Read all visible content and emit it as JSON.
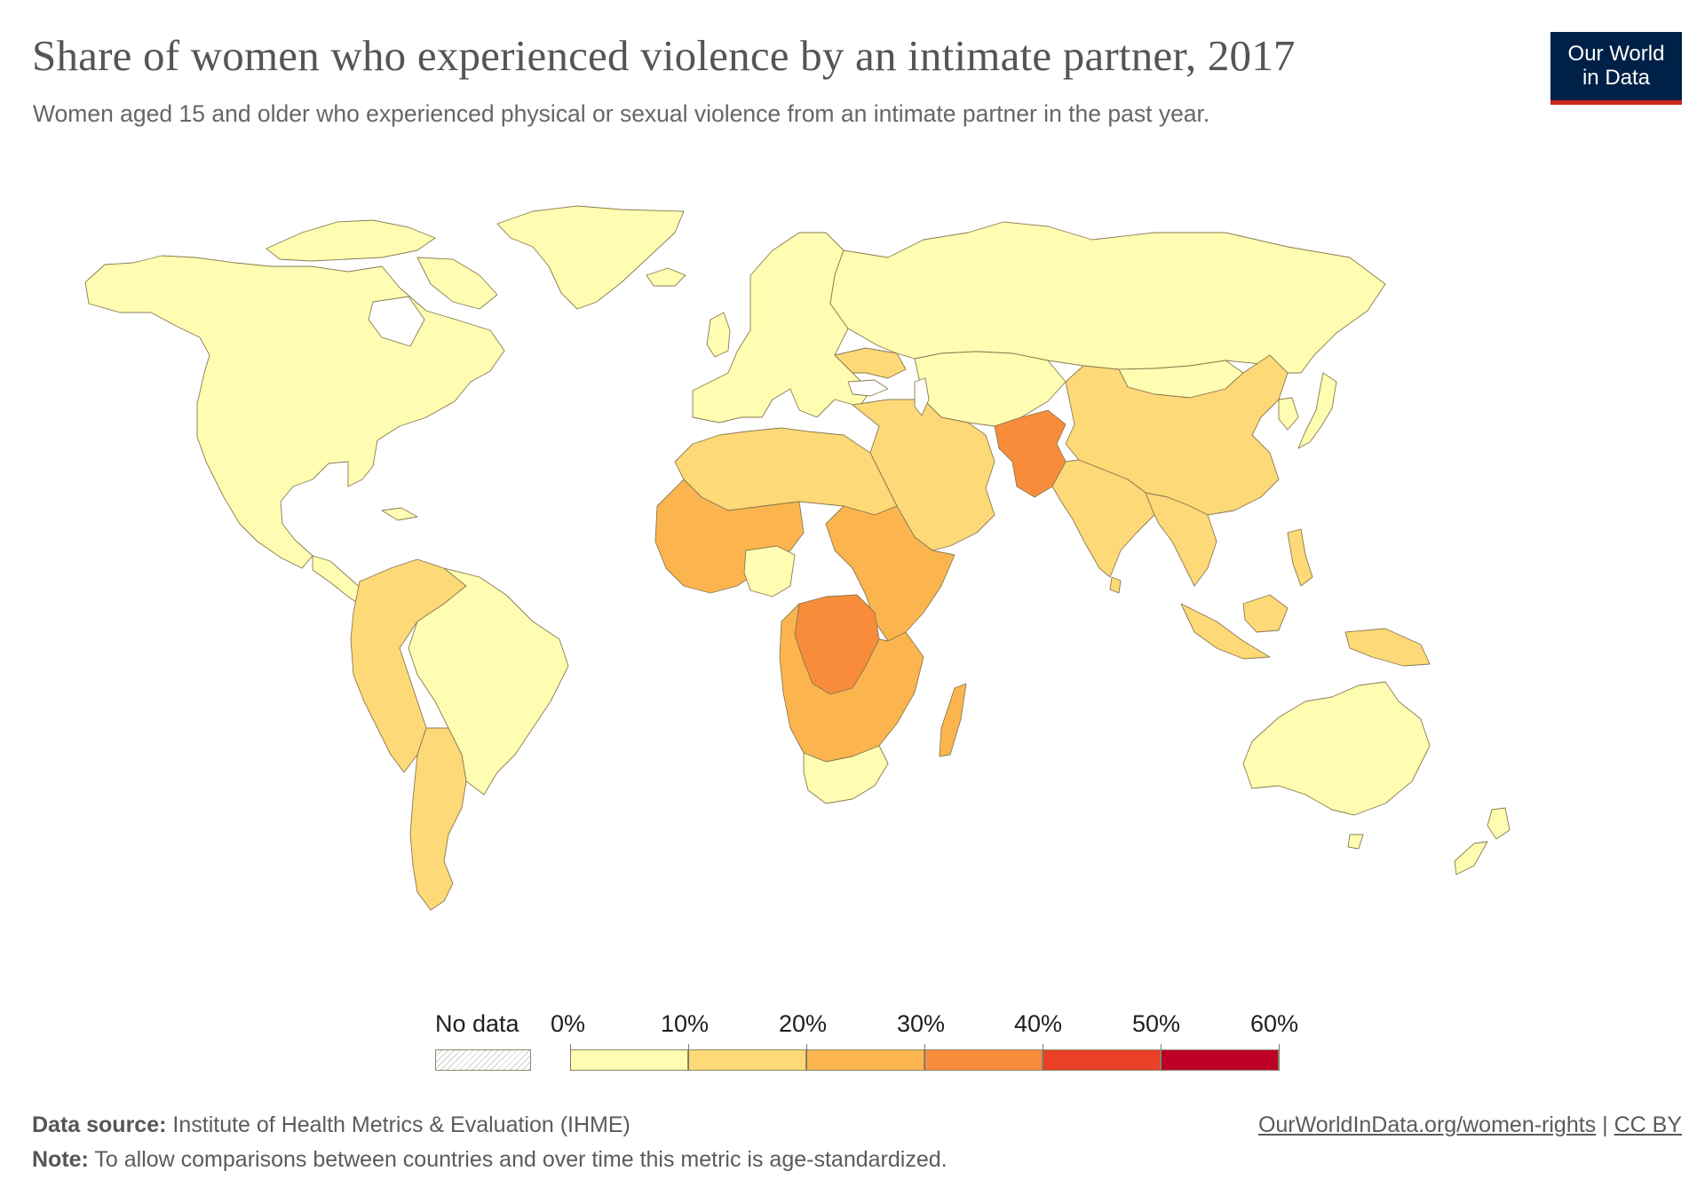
{
  "header": {
    "title": "Share of women who experienced violence by an intimate partner, 2017",
    "subtitle": "Women aged 15 and older who experienced physical or sexual violence from an intimate partner in the past year."
  },
  "logo": {
    "line1": "Our World",
    "line2": "in Data"
  },
  "legend": {
    "no_data_label": "No data",
    "ticks": [
      "0%",
      "10%",
      "20%",
      "30%",
      "40%",
      "50%",
      "60%"
    ],
    "bins": [
      {
        "range": "0-10",
        "color": "#fefdb1"
      },
      {
        "range": "10-20",
        "color": "#fdd977"
      },
      {
        "range": "20-30",
        "color": "#fcb54e"
      },
      {
        "range": "30-40",
        "color": "#f98c3a"
      },
      {
        "range": "40-50",
        "color": "#ea4025"
      },
      {
        "range": "50-60",
        "color": "#bd0026"
      }
    ]
  },
  "footer": {
    "source_label": "Data source:",
    "source_text": "Institute of Health Metrics & Evaluation (IHME)",
    "note_label": "Note:",
    "note_text": "To allow comparisons between countries and over time this metric is age-standardized.",
    "link": "OurWorldInData.org/women-rights",
    "separator": "|",
    "license": "CC BY"
  },
  "regions": [
    {
      "id": "north-america",
      "bin": "0-10"
    },
    {
      "id": "greenland",
      "bin": "0-10"
    },
    {
      "id": "europe",
      "bin": "0-10"
    },
    {
      "id": "russia",
      "bin": "0-10"
    },
    {
      "id": "central-asia",
      "bin": "0-10"
    },
    {
      "id": "mongolia",
      "bin": "0-10"
    },
    {
      "id": "japan",
      "bin": "0-10"
    },
    {
      "id": "brazil",
      "bin": "0-10"
    },
    {
      "id": "australia",
      "bin": "0-10"
    },
    {
      "id": "new-zealand",
      "bin": "0-10"
    },
    {
      "id": "southern-africa",
      "bin": "0-10"
    },
    {
      "id": "nigeria",
      "bin": "0-10"
    },
    {
      "id": "ukraine",
      "bin": "10-20"
    },
    {
      "id": "china",
      "bin": "10-20"
    },
    {
      "id": "india",
      "bin": "10-20"
    },
    {
      "id": "middle-east",
      "bin": "10-20"
    },
    {
      "id": "north-africa",
      "bin": "10-20"
    },
    {
      "id": "andes",
      "bin": "10-20"
    },
    {
      "id": "argentina",
      "bin": "10-20"
    },
    {
      "id": "southeast-asia",
      "bin": "10-20"
    },
    {
      "id": "madagascar",
      "bin": "20-30"
    },
    {
      "id": "west-africa",
      "bin": "20-30"
    },
    {
      "id": "east-africa",
      "bin": "20-30"
    },
    {
      "id": "southern-central-africa",
      "bin": "20-30"
    },
    {
      "id": "afghanistan",
      "bin": "30-40"
    },
    {
      "id": "dr-congo",
      "bin": "30-40"
    }
  ]
}
